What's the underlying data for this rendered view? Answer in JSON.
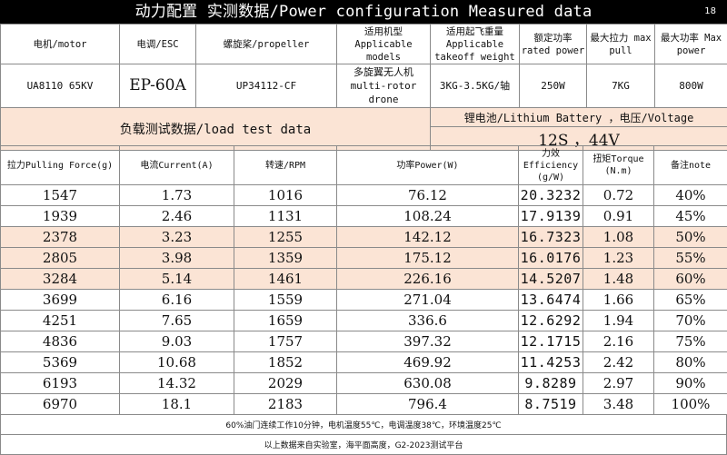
{
  "title": "动力配置 实测数据/Power configuration Measured data",
  "page_number": "18",
  "spec": {
    "headers": [
      "电机/motor",
      "电调/ESC",
      "螺旋桨/propeller",
      "适用机型 Applicable models",
      "适用起飞重量 Applicable takeoff weight",
      "额定功率 rated power",
      "最大拉力 max pull",
      "最大功率 Max power"
    ],
    "values": [
      "UA8110 65KV",
      "EP-60A",
      "UP34112-CF",
      "多旋翼无人机 multi-rotor drone",
      "3KG-3.5KG/轴",
      "250W",
      "7KG",
      "800W"
    ]
  },
  "load_label": "负载测试数据/load test data",
  "battery_label": "锂电池/Lithium Battery ，电压/Voltage",
  "battery_value": "12S ，44V",
  "data_headers": [
    "拉力Pulling Force(g)",
    "电流Current(A)",
    "转速/RPM",
    "功率Power(W)",
    "力效 Efficiency (g/W)",
    "扭矩Torque (N.m)",
    "备注note"
  ],
  "rows": [
    [
      "1547",
      "1.73",
      "1016",
      "76.12",
      "20.3232",
      "0.72",
      "40%"
    ],
    [
      "1939",
      "2.46",
      "1131",
      "108.24",
      "17.9139",
      "0.91",
      "45%"
    ],
    [
      "2378",
      "3.23",
      "1255",
      "142.12",
      "16.7323",
      "1.08",
      "50%"
    ],
    [
      "2805",
      "3.98",
      "1359",
      "175.12",
      "16.0176",
      "1.23",
      "55%"
    ],
    [
      "3284",
      "5.14",
      "1461",
      "226.16",
      "14.5207",
      "1.48",
      "60%"
    ],
    [
      "3699",
      "6.16",
      "1559",
      "271.04",
      "13.6474",
      "1.66",
      "65%"
    ],
    [
      "4251",
      "7.65",
      "1659",
      "336.6",
      "12.6292",
      "1.94",
      "70%"
    ],
    [
      "4836",
      "9.03",
      "1757",
      "397.32",
      "12.1715",
      "2.16",
      "75%"
    ],
    [
      "5369",
      "10.68",
      "1852",
      "469.92",
      "11.4253",
      "2.42",
      "80%"
    ],
    [
      "6193",
      "14.32",
      "2029",
      "630.08",
      "9.8289",
      "2.97",
      "90%"
    ],
    [
      "6970",
      "18.1",
      "2183",
      "796.4",
      "8.7519",
      "3.48",
      "100%"
    ]
  ],
  "notes": [
    "60%油门连续工作10分钟，电机温度55℃，电调温度38℃，环境温度25℃",
    "以上数据来自实验室，海平面高度，G2-2023测试平台"
  ],
  "colors": {
    "title_bg": "#000000",
    "highlight": "#fbe4d5",
    "grid": "#8a8a8a"
  }
}
